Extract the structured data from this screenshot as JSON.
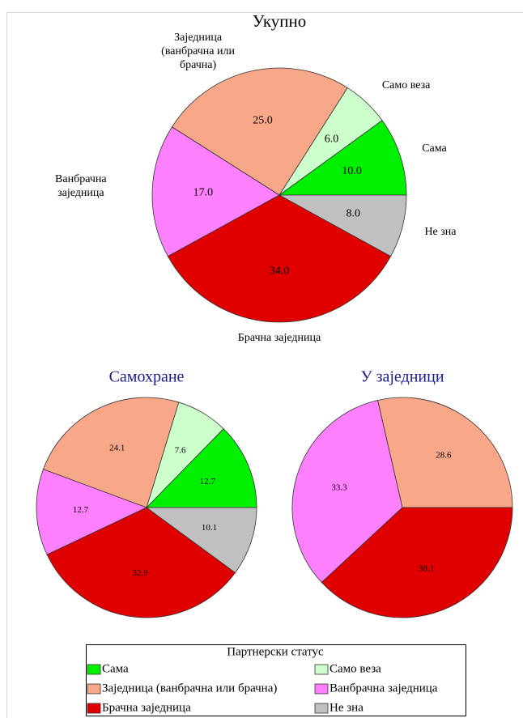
{
  "chart_data": [
    {
      "type": "pie",
      "title": "Укупно",
      "title_color": "#000000",
      "category_labels": true,
      "categories": [
        "Сама",
        "Само веза",
        "Заједница (ванбрачна или брачна)",
        "Ванбрачна заједница",
        "Брачна заједница",
        "Не зна"
      ],
      "values": [
        10,
        6,
        25,
        17,
        34,
        8
      ],
      "value_labels": [
        "10.0",
        "6.0",
        "25.0",
        "17.0",
        "34.0",
        "8.0"
      ],
      "colors": [
        "#00f000",
        "#ccffcc",
        "#f8a888",
        "#ff80ff",
        "#e00000",
        "#c0c0c0"
      ]
    },
    {
      "type": "pie",
      "title": "Самохране",
      "title_color": "#1c1c8c",
      "category_labels": false,
      "categories": [
        "Сама",
        "Само веза",
        "Заједница (ванбрачна или брачна)",
        "Ванбрачна заједница",
        "Брачна заједница",
        "Не зна"
      ],
      "values": [
        12.7,
        7.6,
        24.1,
        12.7,
        32.9,
        10.1
      ],
      "colors": [
        "#00f000",
        "#ccffcc",
        "#f8a888",
        "#ff80ff",
        "#e00000",
        "#c0c0c0"
      ]
    },
    {
      "type": "pie",
      "title": "У заједници",
      "title_color": "#1c1c8c",
      "category_labels": false,
      "categories": [
        "Заједница (ванбрачна или брачна)",
        "Ванбрачна заједница",
        "Брачна заједница"
      ],
      "values": [
        28.6,
        33.3,
        38.1
      ],
      "colors": [
        "#f8a888",
        "#ff80ff",
        "#e00000"
      ]
    }
  ],
  "legend": {
    "title": "Партнерски статус"
  }
}
